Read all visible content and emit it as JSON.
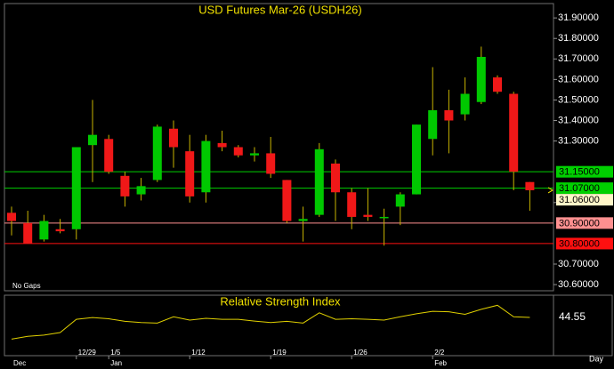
{
  "chart_data": {
    "type": "candlestick",
    "title": "USD Futures Mar-26  (USDH26)",
    "note": "No Gaps",
    "period": "Day",
    "categories": [
      null,
      null,
      null,
      null,
      "12/29",
      null,
      "1/5",
      null,
      null,
      null,
      null,
      "1/12",
      null,
      null,
      null,
      null,
      "1/19",
      null,
      null,
      null,
      null,
      "1/26",
      null,
      null,
      null,
      null,
      "2/2",
      null,
      null,
      null,
      null,
      null,
      null
    ],
    "months": [
      "Dec",
      null,
      null,
      null,
      null,
      null,
      "Jan",
      null,
      null,
      null,
      null,
      null,
      null,
      null,
      null,
      null,
      null,
      null,
      null,
      null,
      null,
      null,
      null,
      null,
      null,
      null,
      "Feb",
      null,
      null,
      null,
      null,
      null,
      null
    ],
    "open": [
      30.95,
      30.9,
      30.82,
      30.87,
      30.87,
      31.28,
      31.31,
      31.13,
      31.04,
      31.11,
      31.36,
      31.25,
      31.05,
      31.29,
      31.27,
      31.23,
      31.24,
      31.11,
      30.91,
      30.94,
      31.19,
      31.05,
      30.94,
      30.93,
      30.98,
      31.04,
      31.31,
      31.45,
      31.43,
      31.49,
      31.61,
      31.53,
      31.1
    ],
    "high": [
      30.98,
      30.96,
      30.94,
      30.92,
      31.27,
      31.5,
      31.33,
      31.15,
      31.12,
      31.38,
      31.4,
      31.33,
      31.33,
      31.35,
      31.28,
      31.27,
      31.32,
      31.11,
      30.98,
      31.29,
      31.21,
      31.07,
      31.07,
      30.97,
      31.05,
      31.38,
      31.66,
      31.55,
      31.61,
      31.76,
      31.62,
      31.54,
      31.1
    ],
    "low": [
      30.84,
      30.8,
      30.81,
      30.85,
      30.82,
      31.1,
      31.14,
      30.98,
      31.01,
      31.1,
      31.17,
      31.0,
      31.0,
      31.25,
      31.22,
      31.2,
      31.12,
      30.9,
      30.81,
      30.93,
      30.91,
      30.87,
      30.91,
      30.79,
      30.89,
      31.04,
      31.23,
      31.24,
      31.4,
      31.48,
      31.53,
      31.06,
      30.96
    ],
    "close": [
      30.91,
      30.8,
      30.91,
      30.86,
      31.27,
      31.33,
      31.15,
      31.03,
      31.08,
      31.37,
      31.27,
      31.03,
      31.3,
      31.27,
      31.23,
      31.24,
      31.14,
      30.91,
      30.92,
      31.26,
      31.05,
      30.93,
      30.93,
      30.93,
      31.04,
      31.38,
      31.45,
      31.4,
      31.53,
      31.71,
      31.54,
      31.15,
      31.06
    ],
    "up_color": "#00c800",
    "down_color": "#f01818",
    "wick_color": "#c8b400",
    "ylim": [
      30.57,
      31.97
    ],
    "yticks": [
      {
        "value": 31.9,
        "label": "31.90000"
      },
      {
        "value": 31.8,
        "label": "31.80000"
      },
      {
        "value": 31.7,
        "label": "31.70000"
      },
      {
        "value": 31.6,
        "label": "31.60000"
      },
      {
        "value": 31.5,
        "label": "31.50000"
      },
      {
        "value": 31.4,
        "label": "31.40000"
      },
      {
        "value": 31.3,
        "label": "31.30000"
      },
      {
        "value": 31.0,
        "label": "31.00000"
      },
      {
        "value": 30.7,
        "label": "30.70000"
      },
      {
        "value": 30.6,
        "label": "30.60000"
      }
    ],
    "levels": [
      {
        "value": 31.15,
        "label": "31.15000",
        "color": "#00d000"
      },
      {
        "value": 31.07,
        "label": "31.07000",
        "color": "#00d000"
      },
      {
        "value": 30.9,
        "label": "30.90000",
        "color": "#ff9090"
      },
      {
        "value": 30.8,
        "label": "30.80000",
        "color": "#ff1010"
      }
    ],
    "last_price": {
      "value": 31.06,
      "label": "31.06000",
      "color": "#fff6c8"
    },
    "rsi": {
      "title": "Relative Strength Index",
      "color": "#e0d000",
      "ylim": [
        30,
        52
      ],
      "values": [
        35.9,
        37.0,
        37.5,
        38.5,
        43.8,
        44.5,
        44.0,
        43.0,
        42.5,
        42.3,
        44.8,
        43.5,
        44.2,
        43.8,
        43.8,
        43.1,
        42.5,
        43.0,
        42.3,
        46.4,
        43.8,
        44.0,
        43.8,
        43.5,
        44.8,
        46.0,
        47.0,
        46.8,
        45.8,
        47.8,
        49.4,
        44.8,
        44.55
      ]
    }
  }
}
